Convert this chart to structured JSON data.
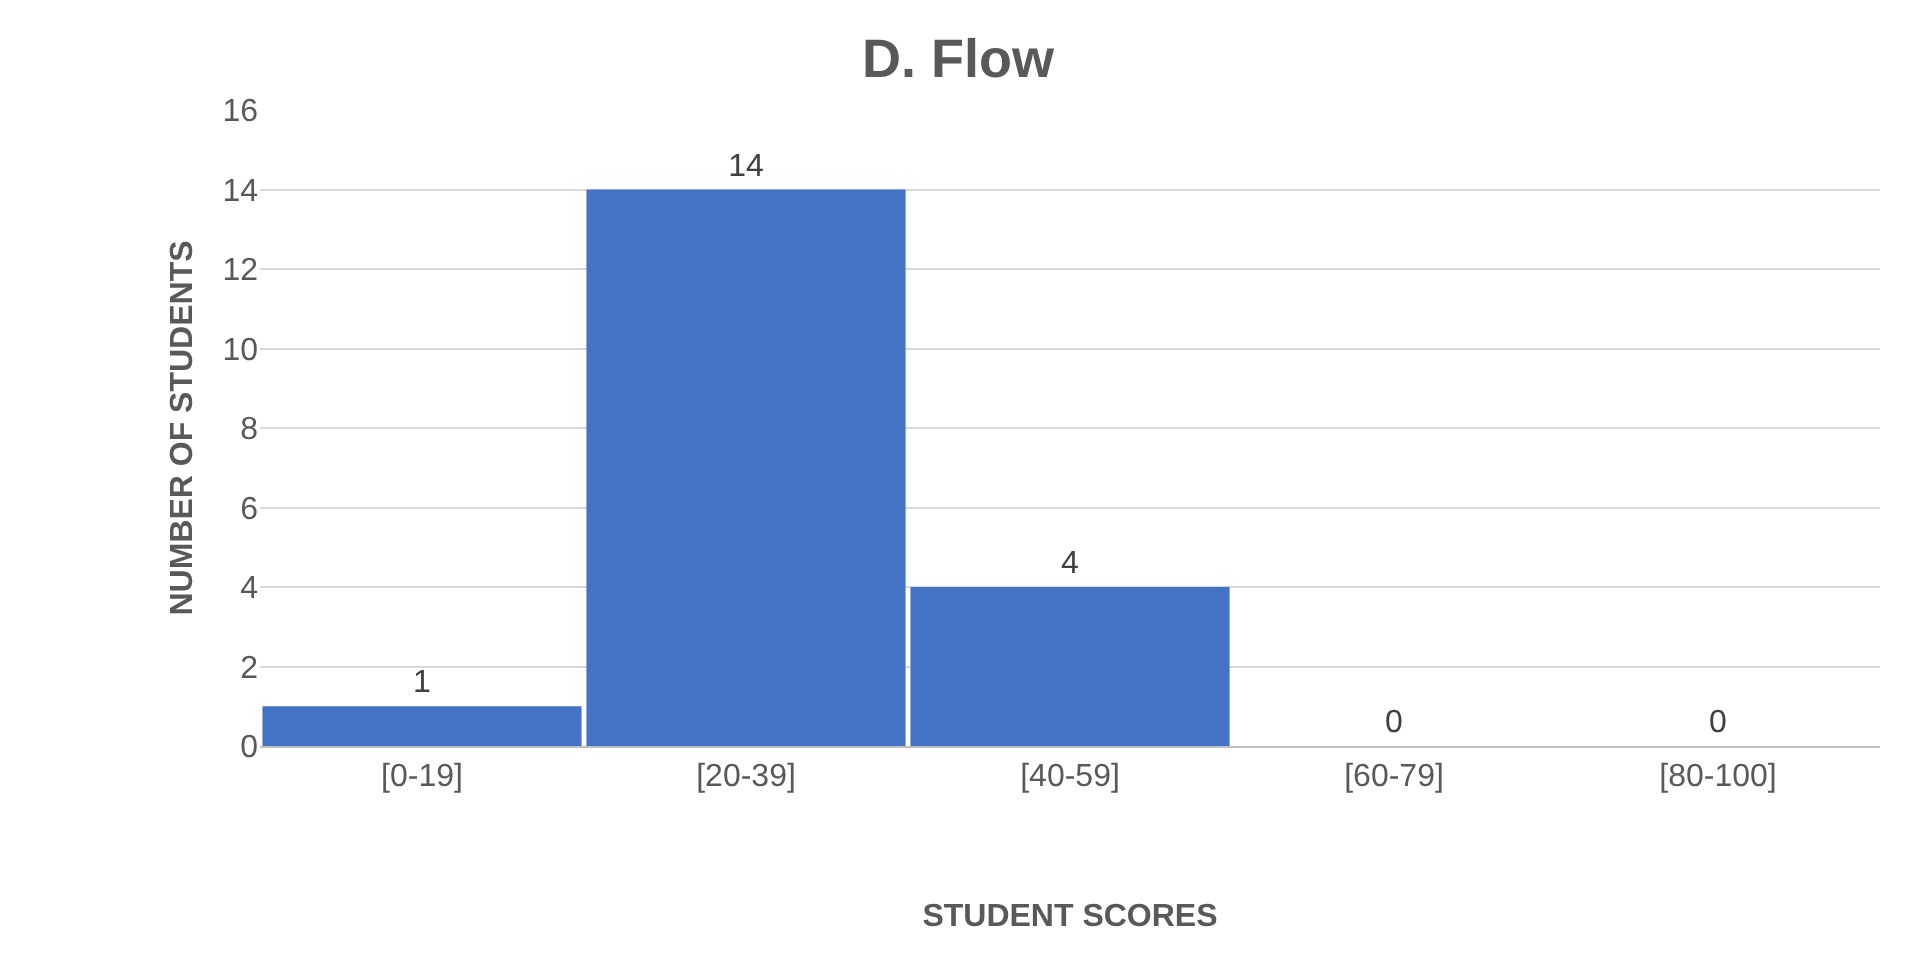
{
  "chart_data": {
    "type": "bar",
    "title": "D. Flow",
    "xlabel": "STUDENT SCORES",
    "ylabel": "NUMBER OF STUDENTS",
    "categories": [
      "[0-19]",
      "[20-39]",
      "[40-59]",
      "[60-79]",
      "[80-100]"
    ],
    "values": [
      1,
      14,
      4,
      0,
      0
    ],
    "color": "#4472c4",
    "ylim": [
      0,
      16
    ],
    "yticks": [
      0,
      2,
      4,
      6,
      8,
      10,
      12,
      14,
      16
    ],
    "grid": "y",
    "data_labels": true
  }
}
